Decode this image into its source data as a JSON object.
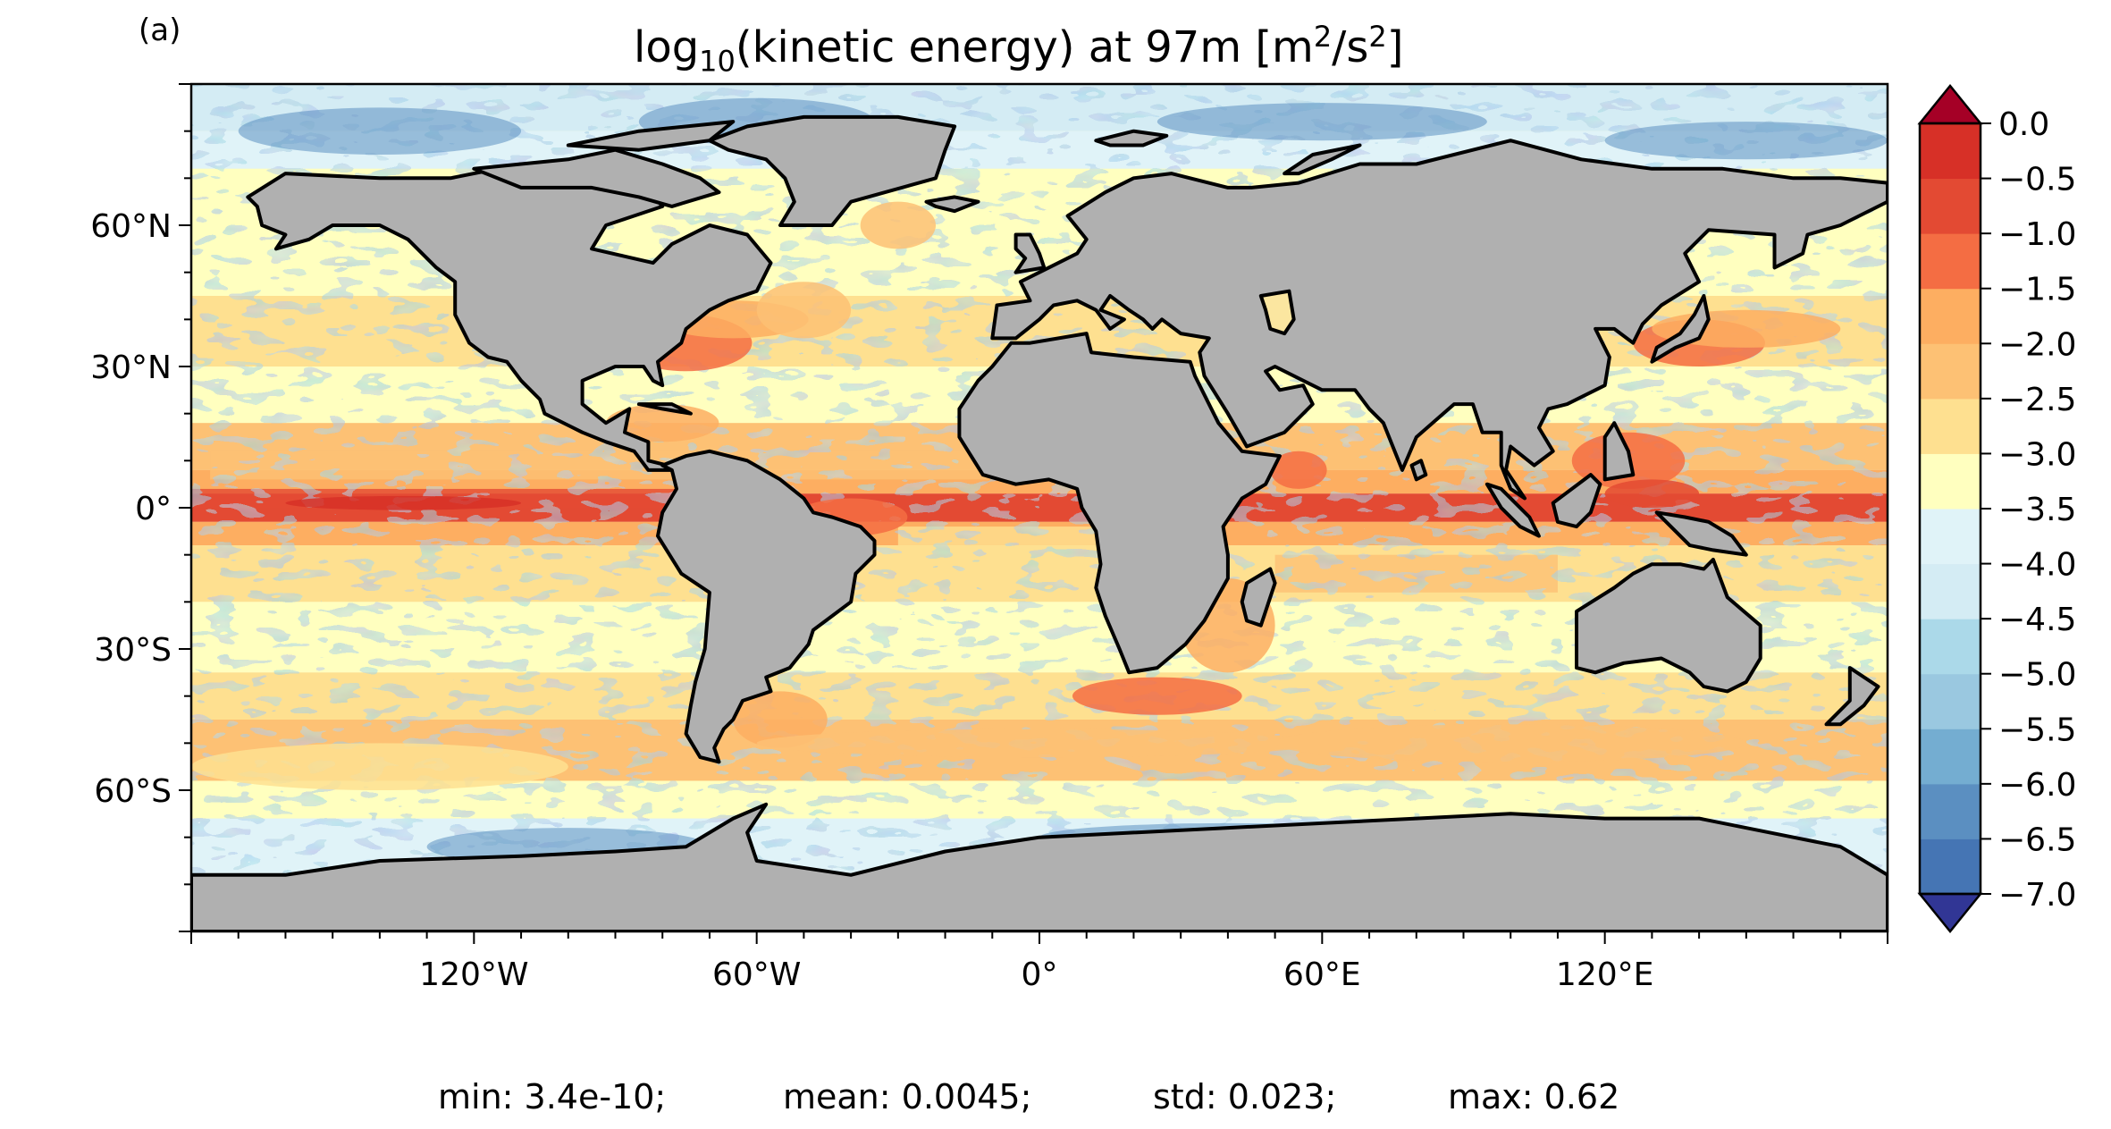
{
  "panel_label": "(a)",
  "title": {
    "prefix": "log",
    "sub": "10",
    "middle": "(kinetic energy) at 97m [m",
    "sup1": "2",
    "mid2": "/s",
    "sup2": "2",
    "suffix": "]"
  },
  "map": {
    "projection": "PlateCarree",
    "lon_range": [
      -180,
      180
    ],
    "lat_range": [
      -90,
      90
    ],
    "land_color": "#b0b0b0",
    "coastline_color": "#000000",
    "x_ticks": [
      {
        "value": -120,
        "label": "120°W"
      },
      {
        "value": -60,
        "label": "60°W"
      },
      {
        "value": 0,
        "label": "0°"
      },
      {
        "value": 60,
        "label": "60°E"
      },
      {
        "value": 120,
        "label": "120°E"
      }
    ],
    "y_ticks": [
      {
        "value": 60,
        "label": "60°N"
      },
      {
        "value": 30,
        "label": "30°N"
      },
      {
        "value": 0,
        "label": "0°"
      },
      {
        "value": -30,
        "label": "30°S"
      },
      {
        "value": -60,
        "label": "60°S"
      }
    ]
  },
  "colorbar": {
    "colormap": "RdYlBu_r",
    "extend": "both",
    "levels": [
      -7.0,
      -6.5,
      -6.0,
      -5.5,
      -5.0,
      -4.5,
      -4.0,
      -3.5,
      -3.0,
      -2.5,
      -2.0,
      -1.5,
      -1.0,
      -0.5,
      0.0
    ],
    "colors": [
      "#313695",
      "#4575b4",
      "#5b8fc1",
      "#74add1",
      "#9ac8e0",
      "#abd9e9",
      "#d4ecf4",
      "#e0f3f8",
      "#ffffbf",
      "#fee090",
      "#fdc174",
      "#fdae61",
      "#f46d43",
      "#e34a33",
      "#d73027",
      "#a50026"
    ],
    "tick_labels": [
      "0.0",
      "−0.5",
      "−1.0",
      "−1.5",
      "−2.0",
      "−2.5",
      "−3.0",
      "−3.5",
      "−4.0",
      "−4.5",
      "−5.0",
      "−5.5",
      "−6.0",
      "−6.5",
      "−7.0"
    ]
  },
  "stats": {
    "min": "min: 3.4e-10;",
    "mean": "mean: 0.0045;",
    "std": "std: 0.023;",
    "max": "max: 0.62"
  }
}
